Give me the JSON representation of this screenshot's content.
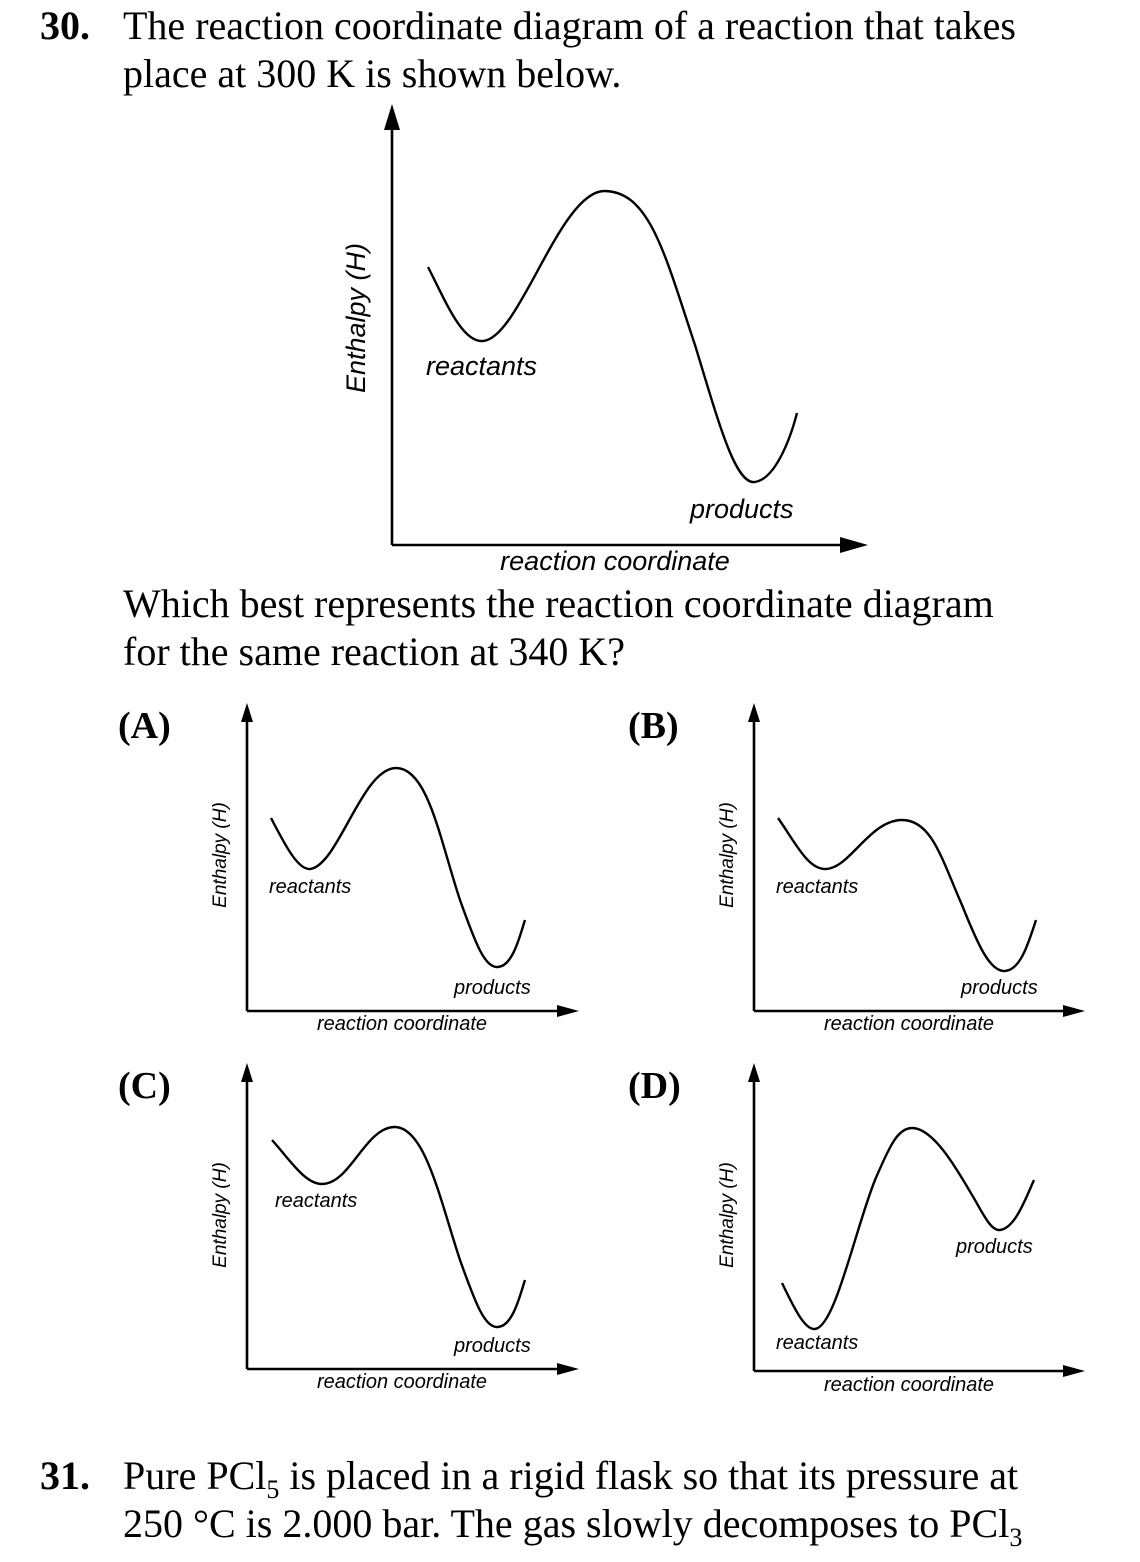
{
  "q30": {
    "number": "30.",
    "line1": "The reaction coordinate diagram of a reaction that takes",
    "line2": "place at 300 K is shown below.",
    "ask1": "Which best represents the reaction coordinate diagram",
    "ask2": "for the same reaction at 340 K?"
  },
  "main_diagram": {
    "y_label": "Enthalpy (H)",
    "x_label": "reaction coordinate",
    "reactants": "reactants",
    "products": "products"
  },
  "options": [
    {
      "label": "(A)",
      "y_label": "Enthalpy (H)",
      "x_label": "reaction coordinate",
      "reactants": "reactants",
      "products": "products"
    },
    {
      "label": "(B)",
      "y_label": "Enthalpy (H)",
      "x_label": "reaction coordinate",
      "reactants": "reactants",
      "products": "products"
    },
    {
      "label": "(C)",
      "y_label": "Enthalpy (H)",
      "x_label": "reaction coordinate",
      "reactants": "reactants",
      "products": "products"
    },
    {
      "label": "(D)",
      "y_label": "Enthalpy (H)",
      "x_label": "reaction coordinate",
      "reactants": "reactants",
      "products": "products"
    }
  ],
  "q31": {
    "number": "31.",
    "line1_pre": "Pure PCl",
    "line1_sub": "5",
    "line1_post": " is placed in a rigid flask so that its pressure at",
    "line2_pre": "250 °C is 2.000 bar. The gas slowly decomposes to PCl",
    "line2_sub": "3"
  }
}
